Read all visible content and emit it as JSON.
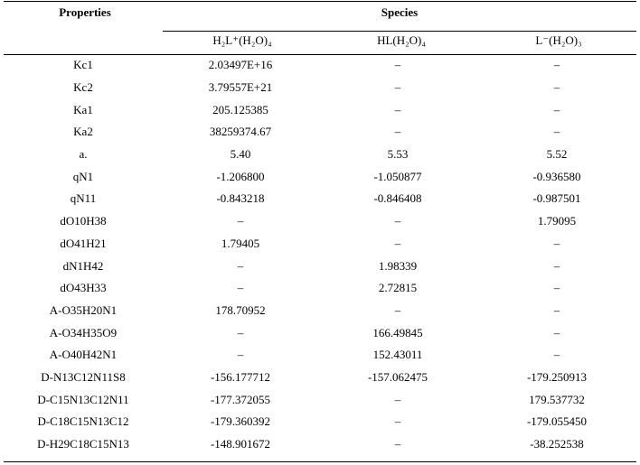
{
  "header": {
    "properties": "Properties",
    "species": "Species",
    "columns": [
      "H₂L⁺(H₂O)₄",
      "HL(H₂O)₄",
      "L⁻(H₂O)₃"
    ]
  },
  "rows": [
    {
      "prop": "Kc1",
      "v": [
        "2.03497E+16",
        "–",
        "–"
      ]
    },
    {
      "prop": "Kc2",
      "v": [
        "3.79557E+21",
        "–",
        "–"
      ]
    },
    {
      "prop": "Ka1",
      "v": [
        "205.125385",
        "–",
        "–"
      ]
    },
    {
      "prop": "Ka2",
      "v": [
        "38259374.67",
        "–",
        "–"
      ]
    },
    {
      "prop": "a.",
      "v": [
        "5.40",
        "5.53",
        "5.52"
      ]
    },
    {
      "prop": "qN1",
      "v": [
        "-1.206800",
        "-1.050877",
        "-0.936580"
      ]
    },
    {
      "prop": "qN11",
      "v": [
        "-0.843218",
        "-0.846408",
        "-0.987501"
      ]
    },
    {
      "prop": "dO10H38",
      "v": [
        "–",
        "–",
        "1.79095"
      ]
    },
    {
      "prop": "dO41H21",
      "v": [
        "1.79405",
        "–",
        "–"
      ]
    },
    {
      "prop": "dN1H42",
      "v": [
        "–",
        "1.98339",
        "–"
      ]
    },
    {
      "prop": "dO43H33",
      "v": [
        "–",
        "2.72815",
        "–"
      ]
    },
    {
      "prop": "A-O35H20N1",
      "v": [
        "178.70952",
        "–",
        "–"
      ]
    },
    {
      "prop": "A-O34H35O9",
      "v": [
        "–",
        "166.49845",
        "–"
      ]
    },
    {
      "prop": "A-O40H42N1",
      "v": [
        "–",
        "152.43011",
        "–"
      ]
    },
    {
      "prop": "D-N13C12N11S8",
      "v": [
        "-156.177712",
        "-157.062475",
        "-179.250913"
      ]
    },
    {
      "prop": "D-C15N13C12N11",
      "v": [
        "-177.372055",
        "–",
        "179.537732"
      ]
    },
    {
      "prop": "D-C18C15N13C12",
      "v": [
        "-179.360392",
        "–",
        "-179.055450"
      ]
    },
    {
      "prop": "D-H29C18C15N13",
      "v": [
        "-148.901672",
        "–",
        "-38.252538"
      ]
    }
  ]
}
